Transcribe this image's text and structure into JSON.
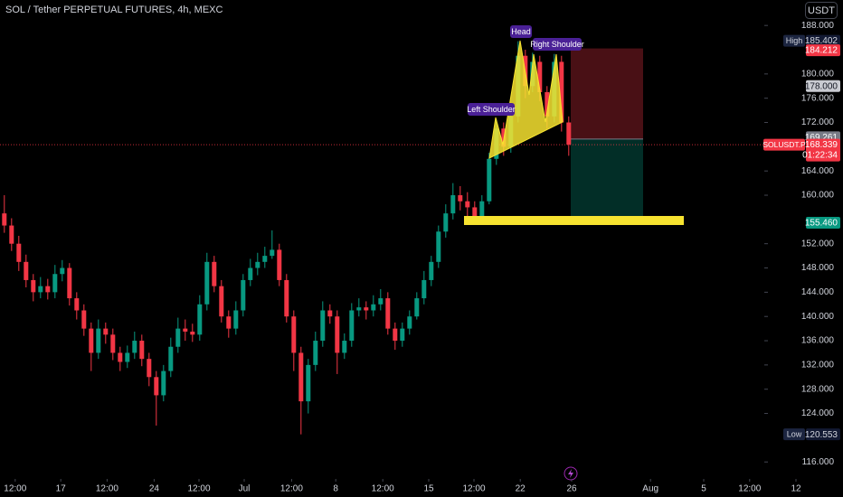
{
  "chart_data": {
    "type": "candlestick",
    "title": "SOL / Tether PERPETUAL FUTURES, 4h, MEXC",
    "currency": "USDT",
    "up_color": "#089981",
    "down_color": "#f23645",
    "open": [
      157,
      155,
      152,
      149,
      146,
      144,
      145,
      144,
      147,
      148,
      143,
      141,
      138,
      134,
      138,
      137,
      134,
      132.5,
      134,
      136,
      133,
      130,
      127,
      131,
      135,
      138,
      137.5,
      137,
      142,
      149,
      145,
      140,
      138,
      141,
      146,
      148,
      149,
      150,
      151,
      146,
      140,
      134,
      126,
      132,
      136,
      141,
      140,
      134,
      136,
      141,
      141.5,
      141,
      142,
      143,
      138,
      136,
      138,
      140,
      143,
      146,
      149,
      154,
      157,
      160,
      159,
      158,
      156,
      159,
      166,
      171,
      168,
      173,
      183,
      178,
      182,
      177,
      173,
      182,
      172
    ],
    "high": [
      160,
      156.2,
      153.3,
      150.2,
      147,
      146.5,
      146.2,
      148.5,
      149.3,
      148.8,
      144,
      142,
      139,
      139.5,
      139,
      138,
      135,
      135.2,
      137.5,
      137,
      134,
      131,
      132,
      136.5,
      139.8,
      139.5,
      138.8,
      143.5,
      150.5,
      150,
      146,
      141,
      142.5,
      147,
      149.5,
      150.5,
      151.5,
      154.2,
      152,
      147,
      141,
      135,
      133,
      137.5,
      142.5,
      142,
      141,
      137.2,
      142.2,
      143,
      142.5,
      143.5,
      144.5,
      144,
      139,
      139,
      141,
      144,
      147.5,
      150,
      155,
      158.5,
      162,
      161.5,
      160.5,
      159,
      160,
      167,
      172.5,
      172,
      174.5,
      185.402,
      184,
      183.5,
      183,
      178,
      183.3,
      183,
      173
    ],
    "low": [
      153.8,
      150.8,
      147.5,
      144.8,
      142.5,
      143,
      142.8,
      143,
      145.8,
      141.8,
      139.5,
      136.8,
      131,
      133,
      135.5,
      132.8,
      131,
      131.5,
      133,
      131.8,
      128.5,
      122,
      126,
      130,
      134,
      136,
      135.8,
      136,
      141,
      144,
      139,
      136.5,
      137,
      140,
      145,
      146.8,
      148,
      149.5,
      145,
      139,
      131,
      120.553,
      124,
      131,
      135,
      138.8,
      130.5,
      133,
      135,
      140,
      139.5,
      140,
      141,
      137,
      134.5,
      135,
      137,
      139.5,
      142,
      145,
      148,
      153,
      156,
      157.5,
      156.5,
      155.5,
      155.8,
      158.5,
      165,
      166.5,
      167,
      172,
      176,
      177,
      175.5,
      171,
      172,
      170.5,
      166.5
    ],
    "close": [
      155,
      152,
      149,
      146,
      144,
      145,
      144,
      147,
      148,
      143,
      141,
      138,
      134,
      138,
      137,
      134,
      132.5,
      134,
      136,
      133,
      130,
      127,
      131,
      135,
      138,
      137.5,
      137,
      142,
      149,
      145,
      140,
      138,
      141,
      146,
      148,
      149,
      150,
      151,
      146,
      140,
      134,
      126,
      132,
      136,
      141,
      140,
      134,
      136,
      141,
      141.5,
      141,
      142,
      143,
      138,
      136,
      138,
      140,
      143,
      146,
      149,
      154,
      157,
      160,
      159,
      158,
      156,
      159,
      166,
      171,
      168,
      173,
      183,
      178,
      182,
      177,
      173,
      182,
      172,
      168.339
    ],
    "xlim": [
      -0.6,
      115.9
    ],
    "xticks": [
      {
        "value": 1.5,
        "label": "12:00"
      },
      {
        "value": 7.8,
        "label": "17"
      },
      {
        "value": 14.2,
        "label": "12:00"
      },
      {
        "value": 20.7,
        "label": "24"
      },
      {
        "value": 26.9,
        "label": "12:00"
      },
      {
        "value": 33.15,
        "label": "Jul"
      },
      {
        "value": 39.7,
        "label": "12:00"
      },
      {
        "value": 45.8,
        "label": "8"
      },
      {
        "value": 52.3,
        "label": "12:00"
      },
      {
        "value": 58.65,
        "label": "15"
      },
      {
        "value": 64.9,
        "label": "12:00"
      },
      {
        "value": 71.3,
        "label": "22"
      },
      {
        "value": 78.4,
        "label": "26"
      },
      {
        "value": 89.3,
        "label": "Aug"
      },
      {
        "value": 96.65,
        "label": "5"
      },
      {
        "value": 103,
        "label": "12:00"
      },
      {
        "value": 109.4,
        "label": "12"
      }
    ],
    "ylim": [
      113.2,
      192.2
    ],
    "yticks": [
      {
        "value": 188,
        "label": "188.000"
      },
      {
        "value": 180,
        "label": "180.000"
      },
      {
        "value": 176,
        "label": "176.000"
      },
      {
        "value": 172,
        "label": "172.000"
      },
      {
        "value": 164,
        "label": "164.000"
      },
      {
        "value": 160,
        "label": "160.000"
      },
      {
        "value": 152,
        "label": "152.000"
      },
      {
        "value": 148,
        "label": "148.000"
      },
      {
        "value": 144,
        "label": "144.000"
      },
      {
        "value": 140,
        "label": "140.000"
      },
      {
        "value": 136,
        "label": "136.000"
      },
      {
        "value": 132,
        "label": "132.000"
      },
      {
        "value": 128,
        "label": "128.000"
      },
      {
        "value": 124,
        "label": "124.000"
      },
      {
        "value": 116,
        "label": "116.000"
      }
    ],
    "grid": false,
    "session_high": {
      "name": "High",
      "value": 185.402
    },
    "session_low": {
      "name": "Low",
      "value": 120.553
    },
    "alert": {
      "value": 178,
      "label": "178.000"
    },
    "position": {
      "stop": {
        "value": 184.212
      },
      "entry": {
        "value": 169.261
      },
      "target": {
        "value": 155.46,
        "label": "155.460"
      }
    },
    "last": {
      "name": "SOLUSDT.P",
      "value": 168.339,
      "countdown": "01:22:34"
    },
    "pattern_labels": [
      "Left Shoulder",
      "Head",
      "Right Shoulder"
    ]
  }
}
